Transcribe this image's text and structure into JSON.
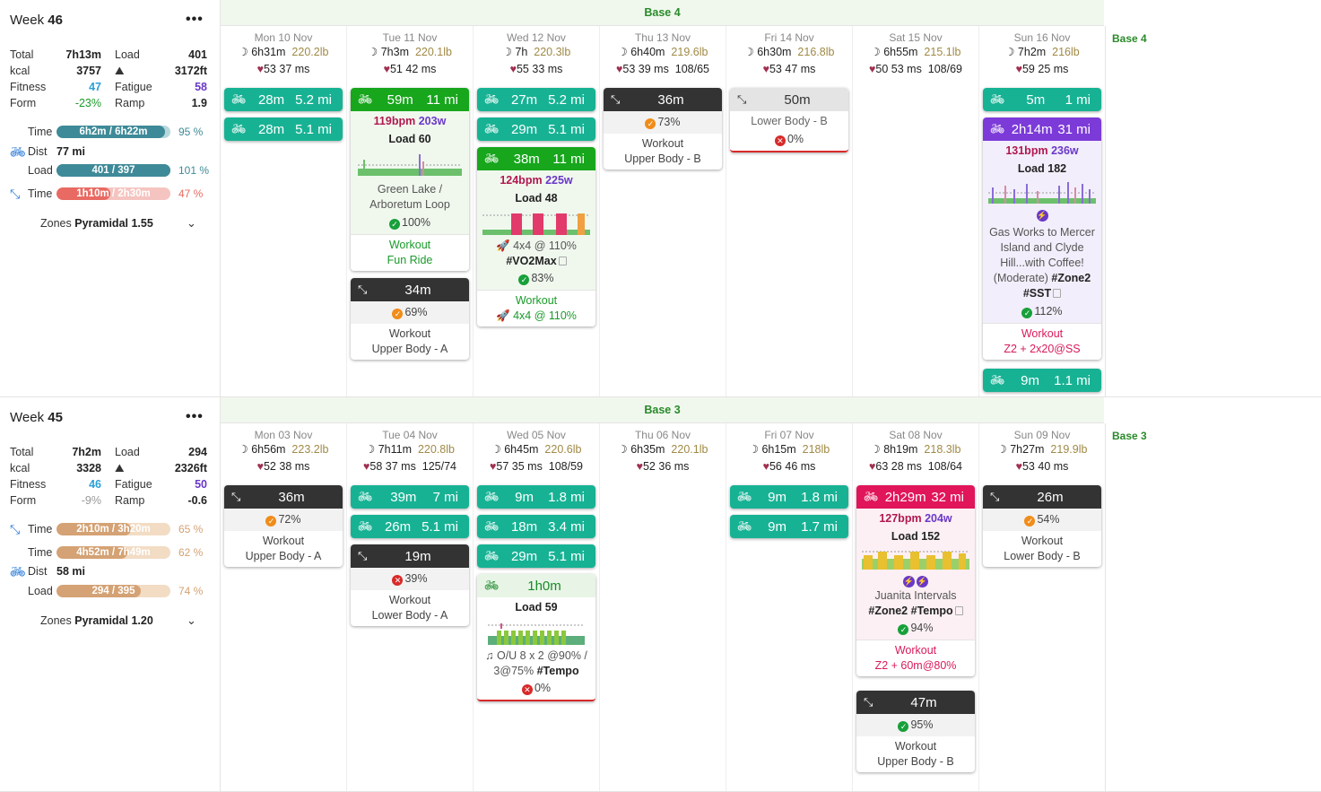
{
  "weeks": [
    {
      "title": "Week",
      "number": "46",
      "stats": {
        "total": "7h13m",
        "load": "401",
        "kcal": "3757",
        "elev": "3172ft",
        "fitness": "47",
        "fatigue": "58",
        "form": "-23%",
        "ramp": "1.9"
      },
      "labels": {
        "total": "Total",
        "load": "Load",
        "kcal": "kcal",
        "fitness": "Fitness",
        "fatigue": "Fatigue",
        "form": "Form",
        "ramp": "Ramp",
        "time": "Time",
        "dist": "Dist",
        "zones": "Zones"
      },
      "metrics": [
        {
          "label": "Time",
          "bar": "6h2m / 6h22m",
          "pct": "95 %",
          "fill": 0.95
        },
        {
          "label": "Dist",
          "value": "77 mi"
        },
        {
          "label": "Load",
          "bar": "401 / 397",
          "pct": "101 %",
          "fill": 1.0
        },
        {
          "label": "Time",
          "bar": "1h10m / 2h30m",
          "pct": "47 %",
          "fill": 0.47
        }
      ],
      "zones": "Pyramidal 1.55",
      "phase": "Base 4",
      "days": [
        {
          "date": "Mon 10 Nov",
          "sleep": "6h31m",
          "weight": "220.2lb",
          "hr": "53",
          "hrv": "37 ms",
          "bp": ""
        },
        {
          "date": "Tue 11 Nov",
          "sleep": "7h3m",
          "weight": "220.1lb",
          "hr": "51",
          "hrv": "42 ms",
          "bp": ""
        },
        {
          "date": "Wed 12 Nov",
          "sleep": "7h",
          "weight": "220.3lb",
          "hr": "55",
          "hrv": "33 ms",
          "bp": ""
        },
        {
          "date": "Thu 13 Nov",
          "sleep": "6h40m",
          "weight": "219.6lb",
          "hr": "53",
          "hrv": "39 ms",
          "bp": "108/65"
        },
        {
          "date": "Fri 14 Nov",
          "sleep": "6h30m",
          "weight": "216.8lb",
          "hr": "53",
          "hrv": "47 ms",
          "bp": ""
        },
        {
          "date": "Sat 15 Nov",
          "sleep": "6h55m",
          "weight": "215.1lb",
          "hr": "50",
          "hrv": "53 ms",
          "bp": "108/69"
        },
        {
          "date": "Sun 16 Nov",
          "sleep": "7h2m",
          "weight": "216lb",
          "hr": "59",
          "hrv": "25 ms",
          "bp": ""
        }
      ],
      "cards": {
        "mon1": {
          "a": "28m",
          "b": "5.2 mi"
        },
        "mon2": {
          "a": "28m",
          "b": "5.1 mi"
        },
        "tue1": {
          "a": "59m",
          "b": "11 mi",
          "bpm": "119bpm",
          "w": "203w",
          "load": "Load 60",
          "name": "Green Lake / Arboretum Loop",
          "pct": "100%",
          "wk": "Workout",
          "wkname": "Fun Ride"
        },
        "tue2": {
          "a": "34m",
          "pct": "69%",
          "wk": "Workout",
          "wkname": "Upper Body - A"
        },
        "wed1": {
          "a": "27m",
          "b": "5.2 mi"
        },
        "wed2": {
          "a": "29m",
          "b": "5.1 mi"
        },
        "wed3": {
          "a": "38m",
          "b": "11 mi",
          "bpm": "124bpm",
          "w": "225w",
          "load": "Load 48",
          "desc": "4x4 @ 110%",
          "tag": "#VO2Max",
          "pct": "83%",
          "wk": "Workout",
          "wkname": "4x4 @ 110%"
        },
        "thu1": {
          "a": "36m",
          "pct": "73%",
          "wk": "Workout",
          "wkname": "Upper Body - B"
        },
        "fri1": {
          "a": "50m",
          "name": "Lower Body - B",
          "pct": "0%"
        },
        "sun1": {
          "a": "5m",
          "b": "1 mi"
        },
        "sun2": {
          "a": "2h14m",
          "b": "31 mi",
          "bpm": "131bpm",
          "w": "236w",
          "load": "Load 182",
          "name": "Gas Works to Mercer Island and Clyde Hill...with Coffee! (Moderate)",
          "tag1": "#Zone2",
          "tag2": "#SST",
          "pct": "112%",
          "wk": "Workout",
          "wkname": "Z2 + 2x20@SS"
        },
        "sun3": {
          "a": "9m",
          "b": "1.1 mi"
        }
      }
    },
    {
      "title": "Week",
      "number": "45",
      "stats": {
        "total": "7h2m",
        "load": "294",
        "kcal": "3328",
        "elev": "2326ft",
        "fitness": "46",
        "fatigue": "50",
        "form": "-9%",
        "ramp": "-0.6"
      },
      "metrics": [
        {
          "label": "Time",
          "bar": "2h10m / 3h20m",
          "pct": "65 %",
          "fill": 0.65
        },
        {
          "label": "Time",
          "bar": "4h52m / 7h49m",
          "pct": "62 %",
          "fill": 0.62
        },
        {
          "label": "Dist",
          "value": "58 mi"
        },
        {
          "label": "Load",
          "bar": "294 / 395",
          "pct": "74 %",
          "fill": 0.74
        }
      ],
      "zones": "Pyramidal 1.20",
      "phase": "Base 3",
      "days": [
        {
          "date": "Mon 03 Nov",
          "sleep": "6h56m",
          "weight": "223.2lb",
          "hr": "52",
          "hrv": "38 ms",
          "bp": ""
        },
        {
          "date": "Tue 04 Nov",
          "sleep": "7h11m",
          "weight": "220.8lb",
          "hr": "58",
          "hrv": "37 ms",
          "bp": "125/74"
        },
        {
          "date": "Wed 05 Nov",
          "sleep": "6h45m",
          "weight": "220.6lb",
          "hr": "57",
          "hrv": "35 ms",
          "bp": "108/59"
        },
        {
          "date": "Thu 06 Nov",
          "sleep": "6h35m",
          "weight": "220.1lb",
          "hr": "52",
          "hrv": "36 ms",
          "bp": ""
        },
        {
          "date": "Fri 07 Nov",
          "sleep": "6h15m",
          "weight": "218lb",
          "hr": "56",
          "hrv": "46 ms",
          "bp": ""
        },
        {
          "date": "Sat 08 Nov",
          "sleep": "8h19m",
          "weight": "218.3lb",
          "hr": "63",
          "hrv": "28 ms",
          "bp": "108/64"
        },
        {
          "date": "Sun 09 Nov",
          "sleep": "7h27m",
          "weight": "219.9lb",
          "hr": "53",
          "hrv": "40 ms",
          "bp": ""
        }
      ],
      "cards": {
        "mon1": {
          "a": "36m",
          "pct": "72%",
          "wk": "Workout",
          "wkname": "Upper Body - A"
        },
        "tue1": {
          "a": "39m",
          "b": "7 mi"
        },
        "tue2": {
          "a": "26m",
          "b": "5.1 mi"
        },
        "tue3": {
          "a": "19m",
          "pct": "39%",
          "wk": "Workout",
          "wkname": "Lower Body - A"
        },
        "wed1": {
          "a": "9m",
          "b": "1.8 mi"
        },
        "wed2": {
          "a": "18m",
          "b": "3.4 mi"
        },
        "wed3": {
          "a": "29m",
          "b": "5.1 mi"
        },
        "wed4": {
          "a": "1h0m",
          "load": "Load 59",
          "desc": "O/U 8 x 2 @90% / 3@75%",
          "tag": "#Tempo",
          "pct": "0%"
        },
        "fri1": {
          "a": "9m",
          "b": "1.8 mi"
        },
        "fri2": {
          "a": "9m",
          "b": "1.7 mi"
        },
        "sat1": {
          "a": "2h29m",
          "b": "32 mi",
          "bpm": "127bpm",
          "w": "204w",
          "load": "Load 152",
          "name": "Juanita Intervals",
          "tag1": "#Zone2",
          "tag2": "#Tempo",
          "pct": "94%",
          "wk": "Workout",
          "wkname": "Z2 + 60m@80%"
        },
        "sat2": {
          "a": "47m",
          "pct": "95%",
          "wk": "Workout",
          "wkname": "Upper Body - B"
        },
        "sun1": {
          "a": "26m",
          "pct": "54%",
          "wk": "Workout",
          "wkname": "Lower Body - B"
        }
      }
    }
  ],
  "colors": {
    "ride": "#17b294",
    "strength": "#333333",
    "ride_done": "#17a61c",
    "purple": "#7c3ad8",
    "red": "#e0155a"
  }
}
